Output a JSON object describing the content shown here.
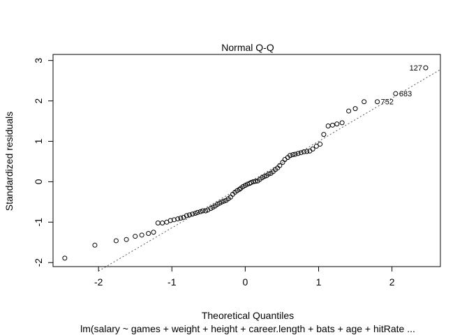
{
  "chart_data": {
    "type": "scatter",
    "title": "Normal Q-Q",
    "xlabel": "Theoretical Quantiles",
    "ylabel": "Standardized residuals",
    "subtitle": "lm(salary ~ games + weight + height + career.length + bats + age + hitRate  ...",
    "xlim": [
      -2.62,
      2.66
    ],
    "ylim": [
      -2.1,
      3.15
    ],
    "x_ticks": [
      -2,
      -1,
      0,
      1,
      2
    ],
    "y_ticks": [
      -2,
      -1,
      0,
      1,
      2,
      3
    ],
    "grid": false,
    "reference_line": {
      "slope": 1.07,
      "intercept": -0.07
    },
    "points": [
      [
        -2.46,
        -1.89
      ],
      [
        -2.05,
        -1.57
      ],
      [
        -1.76,
        -1.46
      ],
      [
        -1.62,
        -1.43
      ],
      [
        -1.5,
        -1.35
      ],
      [
        -1.41,
        -1.32
      ],
      [
        -1.32,
        -1.28
      ],
      [
        -1.25,
        -1.25
      ],
      [
        -1.19,
        -1.02
      ],
      [
        -1.13,
        -1.02
      ],
      [
        -1.07,
        -1.0
      ],
      [
        -1.02,
        -0.96
      ],
      [
        -0.97,
        -0.94
      ],
      [
        -0.92,
        -0.92
      ],
      [
        -0.88,
        -0.9
      ],
      [
        -0.84,
        -0.88
      ],
      [
        -0.8,
        -0.84
      ],
      [
        -0.76,
        -0.82
      ],
      [
        -0.72,
        -0.8
      ],
      [
        -0.68,
        -0.78
      ],
      [
        -0.65,
        -0.76
      ],
      [
        -0.61,
        -0.74
      ],
      [
        -0.58,
        -0.72
      ],
      [
        -0.54,
        -0.72
      ],
      [
        -0.51,
        -0.7
      ],
      [
        -0.47,
        -0.66
      ],
      [
        -0.44,
        -0.63
      ],
      [
        -0.41,
        -0.6
      ],
      [
        -0.38,
        -0.56
      ],
      [
        -0.35,
        -0.53
      ],
      [
        -0.32,
        -0.5
      ],
      [
        -0.29,
        -0.48
      ],
      [
        -0.26,
        -0.46
      ],
      [
        -0.23,
        -0.42
      ],
      [
        -0.2,
        -0.38
      ],
      [
        -0.17,
        -0.31
      ],
      [
        -0.14,
        -0.26
      ],
      [
        -0.11,
        -0.22
      ],
      [
        -0.08,
        -0.19
      ],
      [
        -0.06,
        -0.16
      ],
      [
        -0.03,
        -0.12
      ],
      [
        0.0,
        -0.09
      ],
      [
        0.03,
        -0.06
      ],
      [
        0.06,
        -0.04
      ],
      [
        0.08,
        -0.02
      ],
      [
        0.11,
        0.0
      ],
      [
        0.14,
        0.01
      ],
      [
        0.17,
        0.02
      ],
      [
        0.2,
        0.06
      ],
      [
        0.23,
        0.1
      ],
      [
        0.26,
        0.13
      ],
      [
        0.29,
        0.15
      ],
      [
        0.32,
        0.19
      ],
      [
        0.35,
        0.21
      ],
      [
        0.38,
        0.25
      ],
      [
        0.41,
        0.3
      ],
      [
        0.44,
        0.34
      ],
      [
        0.47,
        0.4
      ],
      [
        0.51,
        0.48
      ],
      [
        0.54,
        0.55
      ],
      [
        0.58,
        0.6
      ],
      [
        0.61,
        0.65
      ],
      [
        0.65,
        0.67
      ],
      [
        0.68,
        0.68
      ],
      [
        0.72,
        0.7
      ],
      [
        0.76,
        0.72
      ],
      [
        0.8,
        0.74
      ],
      [
        0.84,
        0.75
      ],
      [
        0.88,
        0.76
      ],
      [
        0.92,
        0.81
      ],
      [
        0.97,
        0.88
      ],
      [
        1.02,
        0.93
      ],
      [
        1.07,
        1.17
      ],
      [
        1.13,
        1.38
      ],
      [
        1.19,
        1.4
      ],
      [
        1.25,
        1.43
      ],
      [
        1.32,
        1.46
      ],
      [
        1.41,
        1.75
      ],
      [
        1.5,
        1.81
      ],
      [
        1.62,
        1.98
      ],
      [
        1.8,
        1.98
      ],
      [
        2.05,
        2.18
      ],
      [
        2.46,
        2.82
      ]
    ],
    "point_labels": [
      {
        "text": "127",
        "x": 2.46,
        "y": 2.82,
        "side": "left"
      },
      {
        "text": "683",
        "x": 2.05,
        "y": 2.18,
        "side": "right"
      },
      {
        "text": "752",
        "x": 1.8,
        "y": 1.98,
        "side": "right"
      }
    ]
  }
}
